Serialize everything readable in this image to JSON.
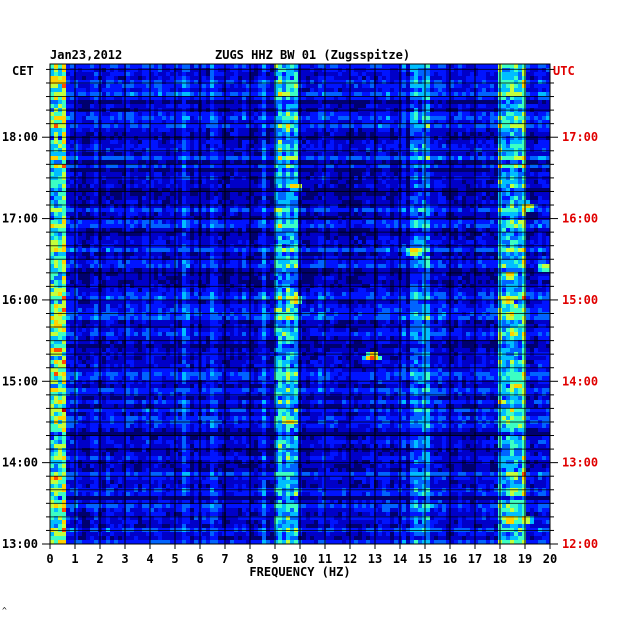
{
  "header": {
    "date": "Jan23,2012",
    "station": "ZUGS HHZ BW 01 (Zugsspitze)"
  },
  "axes": {
    "left_label": "CET",
    "right_label": "UTC",
    "x_label": "FREQUENCY (HZ)"
  },
  "colors": {
    "background": "#ffffff",
    "plot_base": "#0000c0",
    "utc_labels": "#e00000",
    "grid": "#000000",
    "colormap": [
      "#00006e",
      "#0000c8",
      "#0014ff",
      "#0064ff",
      "#00beff",
      "#3cffc3",
      "#c3ff3c",
      "#ffd200",
      "#ff4b00",
      "#b40000"
    ]
  },
  "footer_mark": "^",
  "chart_data": {
    "type": "heatmap",
    "title": "ZUGS HHZ BW 01 (Zugsspitze)",
    "xlabel": "FREQUENCY (HZ)",
    "ylabel_left": "CET",
    "ylabel_right": "UTC",
    "xlim": [
      0,
      20
    ],
    "x_ticks": [
      "0",
      "1",
      "2",
      "3",
      "4",
      "5",
      "6",
      "7",
      "8",
      "9",
      "10",
      "11",
      "12",
      "13",
      "14",
      "15",
      "16",
      "17",
      "18",
      "19",
      "20"
    ],
    "y_range_cet_hours": [
      13.0,
      18.9
    ],
    "y_ticks_cet": [
      {
        "hour": 13,
        "label": "13:00"
      },
      {
        "hour": 14,
        "label": "14:00"
      },
      {
        "hour": 15,
        "label": "15:00"
      },
      {
        "hour": 16,
        "label": "16:00"
      },
      {
        "hour": 17,
        "label": "17:00"
      },
      {
        "hour": 18,
        "label": "18:00"
      }
    ],
    "y_ticks_utc": [
      {
        "hour": 13,
        "label": "12:00"
      },
      {
        "hour": 14,
        "label": "13:00"
      },
      {
        "hour": 15,
        "label": "14:00"
      },
      {
        "hour": 16,
        "label": "15:00"
      },
      {
        "hour": 17,
        "label": "16:00"
      },
      {
        "hour": 18,
        "label": "17:00"
      }
    ],
    "minor_y_ticks_per_hour": 6,
    "grid": true,
    "power_bands": [
      {
        "freq": [
          0.0,
          0.6
        ],
        "level": 0.62
      },
      {
        "freq": [
          8.9,
          9.9
        ],
        "level": 0.5
      },
      {
        "freq": [
          17.9,
          19.1
        ],
        "level": 0.5
      },
      {
        "freq": [
          14.5,
          15.2
        ],
        "level": 0.38
      }
    ],
    "hot_spots": [
      {
        "freq": 0.2,
        "hour": 18.7,
        "level": 0.85
      },
      {
        "freq": 0.3,
        "hour": 15.7,
        "level": 0.82
      },
      {
        "freq": 0.2,
        "hour": 13.8,
        "level": 0.85
      },
      {
        "freq": 0.3,
        "hour": 15.38,
        "level": 0.9
      },
      {
        "freq": 12.9,
        "hour": 15.3,
        "level": 0.85
      },
      {
        "freq": 9.6,
        "hour": 14.5,
        "level": 0.8
      },
      {
        "freq": 9.8,
        "hour": 17.4,
        "level": 0.75
      },
      {
        "freq": 9.8,
        "hour": 16.0,
        "level": 0.78
      },
      {
        "freq": 14.6,
        "hour": 16.6,
        "level": 0.8
      },
      {
        "freq": 18.4,
        "hour": 16.3,
        "level": 0.78
      },
      {
        "freq": 18.3,
        "hour": 16.0,
        "level": 0.82
      },
      {
        "freq": 18.4,
        "hour": 13.3,
        "level": 0.85
      },
      {
        "freq": 19.0,
        "hour": 13.3,
        "level": 0.75
      },
      {
        "freq": 18.7,
        "hour": 14.95,
        "level": 0.78
      },
      {
        "freq": 19.1,
        "hour": 17.15,
        "level": 0.72
      },
      {
        "freq": 19.8,
        "hour": 16.4,
        "level": 0.7
      }
    ]
  }
}
